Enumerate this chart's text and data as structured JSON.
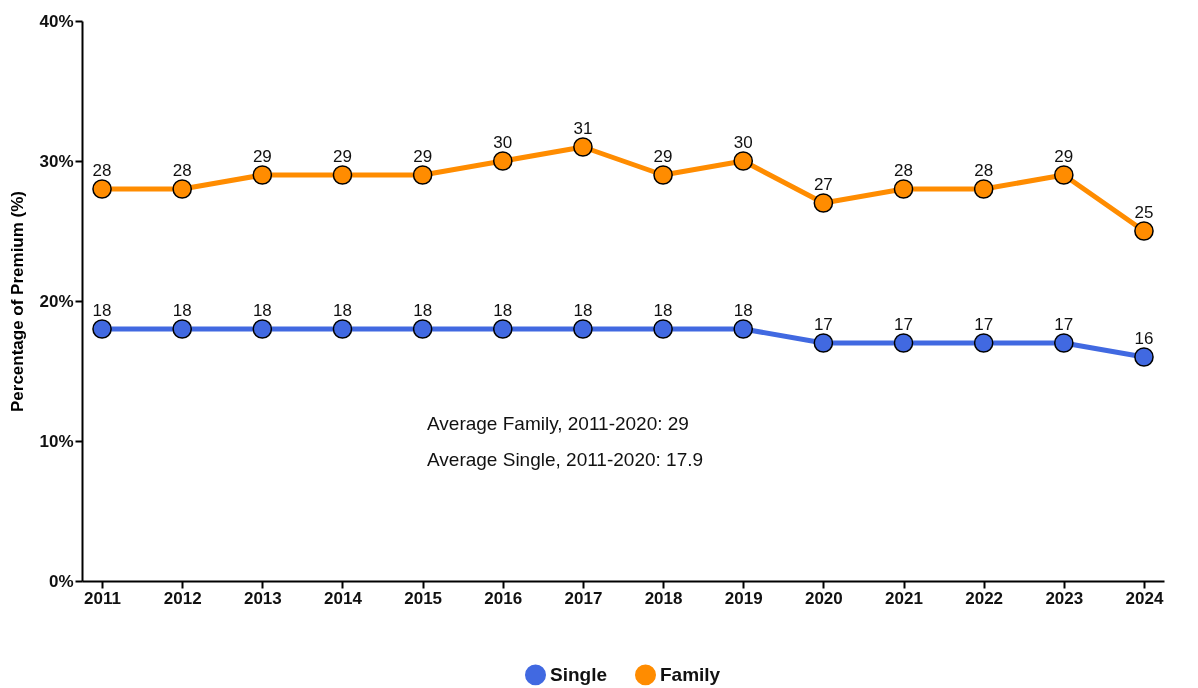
{
  "chart_data": {
    "type": "line",
    "ylabel": "Percentage of Premium (%)",
    "categories": [
      "2011",
      "2012",
      "2013",
      "2014",
      "2015",
      "2016",
      "2017",
      "2018",
      "2019",
      "2020",
      "2021",
      "2022",
      "2023",
      "2024"
    ],
    "series": [
      {
        "name": "Single",
        "color": "#4169e1",
        "values": [
          18,
          18,
          18,
          18,
          18,
          18,
          18,
          18,
          18,
          17,
          17,
          17,
          17,
          16
        ]
      },
      {
        "name": "Family",
        "color": "#ff8c00",
        "values": [
          28,
          28,
          29,
          29,
          29,
          30,
          31,
          29,
          30,
          27,
          28,
          28,
          29,
          25
        ]
      }
    ],
    "ylim": [
      0,
      40
    ],
    "yticks": [
      {
        "value": 0,
        "label": "0%"
      },
      {
        "value": 10,
        "label": "10%"
      },
      {
        "value": 20,
        "label": "20%"
      },
      {
        "value": 30,
        "label": "30%"
      },
      {
        "value": 40,
        "label": "40%"
      }
    ],
    "grid": false,
    "legend": "bottom",
    "marker": "circle",
    "line_style": "solid",
    "data_labels": true,
    "annotations": [
      "Average Family, 2011-2020: 29",
      "Average Single, 2011-2020: 17.9"
    ]
  }
}
